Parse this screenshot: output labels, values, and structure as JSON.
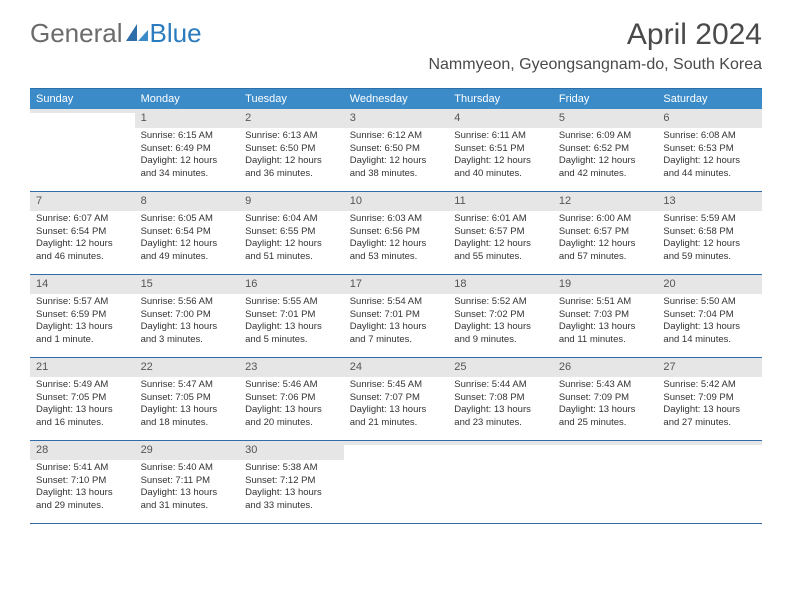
{
  "logo": {
    "text1": "General",
    "text2": "Blue"
  },
  "title": "April 2024",
  "location": "Nammyeon, Gyeongsangnam-do, South Korea",
  "colors": {
    "header_bar": "#3b8bc9",
    "row_divider": "#2d6ea8",
    "daynum_bg": "#e6e6e6",
    "text": "#333333",
    "title_text": "#4a4a4a",
    "logo_gray": "#6b6b6b",
    "logo_blue": "#2b7bbf"
  },
  "days_of_week": [
    "Sunday",
    "Monday",
    "Tuesday",
    "Wednesday",
    "Thursday",
    "Friday",
    "Saturday"
  ],
  "weeks": [
    [
      null,
      {
        "n": "1",
        "sr": "Sunrise: 6:15 AM",
        "ss": "Sunset: 6:49 PM",
        "d1": "Daylight: 12 hours",
        "d2": "and 34 minutes."
      },
      {
        "n": "2",
        "sr": "Sunrise: 6:13 AM",
        "ss": "Sunset: 6:50 PM",
        "d1": "Daylight: 12 hours",
        "d2": "and 36 minutes."
      },
      {
        "n": "3",
        "sr": "Sunrise: 6:12 AM",
        "ss": "Sunset: 6:50 PM",
        "d1": "Daylight: 12 hours",
        "d2": "and 38 minutes."
      },
      {
        "n": "4",
        "sr": "Sunrise: 6:11 AM",
        "ss": "Sunset: 6:51 PM",
        "d1": "Daylight: 12 hours",
        "d2": "and 40 minutes."
      },
      {
        "n": "5",
        "sr": "Sunrise: 6:09 AM",
        "ss": "Sunset: 6:52 PM",
        "d1": "Daylight: 12 hours",
        "d2": "and 42 minutes."
      },
      {
        "n": "6",
        "sr": "Sunrise: 6:08 AM",
        "ss": "Sunset: 6:53 PM",
        "d1": "Daylight: 12 hours",
        "d2": "and 44 minutes."
      }
    ],
    [
      {
        "n": "7",
        "sr": "Sunrise: 6:07 AM",
        "ss": "Sunset: 6:54 PM",
        "d1": "Daylight: 12 hours",
        "d2": "and 46 minutes."
      },
      {
        "n": "8",
        "sr": "Sunrise: 6:05 AM",
        "ss": "Sunset: 6:54 PM",
        "d1": "Daylight: 12 hours",
        "d2": "and 49 minutes."
      },
      {
        "n": "9",
        "sr": "Sunrise: 6:04 AM",
        "ss": "Sunset: 6:55 PM",
        "d1": "Daylight: 12 hours",
        "d2": "and 51 minutes."
      },
      {
        "n": "10",
        "sr": "Sunrise: 6:03 AM",
        "ss": "Sunset: 6:56 PM",
        "d1": "Daylight: 12 hours",
        "d2": "and 53 minutes."
      },
      {
        "n": "11",
        "sr": "Sunrise: 6:01 AM",
        "ss": "Sunset: 6:57 PM",
        "d1": "Daylight: 12 hours",
        "d2": "and 55 minutes."
      },
      {
        "n": "12",
        "sr": "Sunrise: 6:00 AM",
        "ss": "Sunset: 6:57 PM",
        "d1": "Daylight: 12 hours",
        "d2": "and 57 minutes."
      },
      {
        "n": "13",
        "sr": "Sunrise: 5:59 AM",
        "ss": "Sunset: 6:58 PM",
        "d1": "Daylight: 12 hours",
        "d2": "and 59 minutes."
      }
    ],
    [
      {
        "n": "14",
        "sr": "Sunrise: 5:57 AM",
        "ss": "Sunset: 6:59 PM",
        "d1": "Daylight: 13 hours",
        "d2": "and 1 minute."
      },
      {
        "n": "15",
        "sr": "Sunrise: 5:56 AM",
        "ss": "Sunset: 7:00 PM",
        "d1": "Daylight: 13 hours",
        "d2": "and 3 minutes."
      },
      {
        "n": "16",
        "sr": "Sunrise: 5:55 AM",
        "ss": "Sunset: 7:01 PM",
        "d1": "Daylight: 13 hours",
        "d2": "and 5 minutes."
      },
      {
        "n": "17",
        "sr": "Sunrise: 5:54 AM",
        "ss": "Sunset: 7:01 PM",
        "d1": "Daylight: 13 hours",
        "d2": "and 7 minutes."
      },
      {
        "n": "18",
        "sr": "Sunrise: 5:52 AM",
        "ss": "Sunset: 7:02 PM",
        "d1": "Daylight: 13 hours",
        "d2": "and 9 minutes."
      },
      {
        "n": "19",
        "sr": "Sunrise: 5:51 AM",
        "ss": "Sunset: 7:03 PM",
        "d1": "Daylight: 13 hours",
        "d2": "and 11 minutes."
      },
      {
        "n": "20",
        "sr": "Sunrise: 5:50 AM",
        "ss": "Sunset: 7:04 PM",
        "d1": "Daylight: 13 hours",
        "d2": "and 14 minutes."
      }
    ],
    [
      {
        "n": "21",
        "sr": "Sunrise: 5:49 AM",
        "ss": "Sunset: 7:05 PM",
        "d1": "Daylight: 13 hours",
        "d2": "and 16 minutes."
      },
      {
        "n": "22",
        "sr": "Sunrise: 5:47 AM",
        "ss": "Sunset: 7:05 PM",
        "d1": "Daylight: 13 hours",
        "d2": "and 18 minutes."
      },
      {
        "n": "23",
        "sr": "Sunrise: 5:46 AM",
        "ss": "Sunset: 7:06 PM",
        "d1": "Daylight: 13 hours",
        "d2": "and 20 minutes."
      },
      {
        "n": "24",
        "sr": "Sunrise: 5:45 AM",
        "ss": "Sunset: 7:07 PM",
        "d1": "Daylight: 13 hours",
        "d2": "and 21 minutes."
      },
      {
        "n": "25",
        "sr": "Sunrise: 5:44 AM",
        "ss": "Sunset: 7:08 PM",
        "d1": "Daylight: 13 hours",
        "d2": "and 23 minutes."
      },
      {
        "n": "26",
        "sr": "Sunrise: 5:43 AM",
        "ss": "Sunset: 7:09 PM",
        "d1": "Daylight: 13 hours",
        "d2": "and 25 minutes."
      },
      {
        "n": "27",
        "sr": "Sunrise: 5:42 AM",
        "ss": "Sunset: 7:09 PM",
        "d1": "Daylight: 13 hours",
        "d2": "and 27 minutes."
      }
    ],
    [
      {
        "n": "28",
        "sr": "Sunrise: 5:41 AM",
        "ss": "Sunset: 7:10 PM",
        "d1": "Daylight: 13 hours",
        "d2": "and 29 minutes."
      },
      {
        "n": "29",
        "sr": "Sunrise: 5:40 AM",
        "ss": "Sunset: 7:11 PM",
        "d1": "Daylight: 13 hours",
        "d2": "and 31 minutes."
      },
      {
        "n": "30",
        "sr": "Sunrise: 5:38 AM",
        "ss": "Sunset: 7:12 PM",
        "d1": "Daylight: 13 hours",
        "d2": "and 33 minutes."
      },
      null,
      null,
      null,
      null
    ]
  ]
}
